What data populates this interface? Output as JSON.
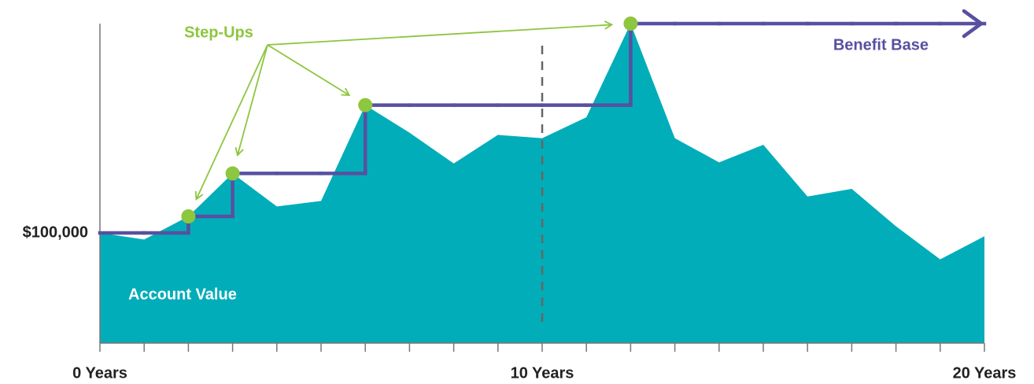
{
  "chart_data": {
    "type": "area",
    "x": [
      0,
      1,
      2,
      3,
      4,
      5,
      6,
      7,
      8,
      9,
      10,
      11,
      12,
      13,
      14,
      15,
      16,
      17,
      18,
      19,
      20
    ],
    "xlim": [
      0,
      20
    ],
    "xticks": [
      {
        "value": 0,
        "label": "0 Years"
      },
      {
        "value": 10,
        "label": "10 Years"
      },
      {
        "value": 20,
        "label": "20 Years"
      }
    ],
    "ylim": [
      0,
      310000
    ],
    "yticks": [
      {
        "value": 100000,
        "label": "$100,000"
      }
    ],
    "series": [
      {
        "name": "Account Value",
        "color": "#00adb9",
        "values": [
          100000,
          94000,
          115000,
          154000,
          124000,
          129000,
          216000,
          191000,
          163000,
          189000,
          186000,
          205000,
          290000,
          186000,
          164000,
          180000,
          133000,
          140000,
          106000,
          76000,
          97000
        ]
      },
      {
        "name": "Benefit Base",
        "color": "#58509f",
        "values": [
          100000,
          100000,
          115000,
          154000,
          154000,
          154000,
          216000,
          216000,
          216000,
          216000,
          216000,
          216000,
          290000,
          290000,
          290000,
          290000,
          290000,
          290000,
          290000,
          290000,
          290000
        ]
      }
    ],
    "step_ups": {
      "label": "Step-Ups",
      "color": "#8dc63f",
      "x": [
        2,
        3,
        6,
        12
      ]
    },
    "vline": 10
  }
}
